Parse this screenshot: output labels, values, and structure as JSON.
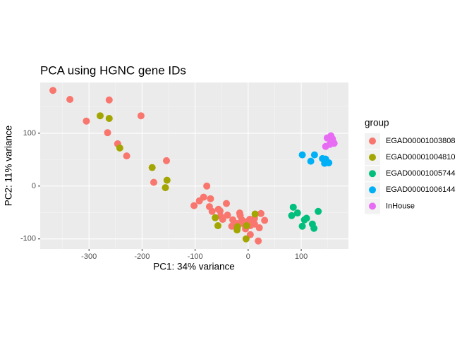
{
  "chart_data": {
    "type": "scatter",
    "title": "PCA using HGNC gene IDs",
    "x_label": "PC1: 34% variance",
    "y_label": "PC2: 11% variance",
    "legend_title": "group",
    "xlim": [
      -392,
      189
    ],
    "ylim": [
      -119,
      196
    ],
    "xticks": [
      -300,
      -200,
      -100,
      0,
      100
    ],
    "yticks": [
      -100,
      0,
      100
    ],
    "grid": true,
    "legend": "right",
    "series": [
      {
        "name": "EGAD00001003808",
        "color": "#F8766D",
        "x": [
          -368,
          -336,
          -262,
          -305,
          -202,
          -265,
          -246,
          -229,
          -154,
          -178,
          -78,
          -102,
          -92,
          -84,
          -71,
          -73,
          -68,
          -56,
          -53,
          -41,
          -39,
          -52,
          -48,
          -29,
          -31,
          -21,
          -15,
          -12,
          -8,
          -1,
          3,
          7,
          12,
          4,
          21,
          31,
          19,
          24,
          12,
          -16,
          4,
          -5
        ],
        "values": [
          181,
          164,
          163,
          123,
          133,
          101,
          80,
          57,
          48,
          7,
          0,
          -37,
          -28,
          -21,
          -24,
          -39,
          -48,
          -44,
          -47,
          -33,
          -55,
          -57,
          -63,
          -64,
          -76,
          -71,
          -56,
          -64,
          -72,
          -67,
          -63,
          -69,
          -72,
          -92,
          -79,
          -65,
          -104,
          -52,
          -61,
          -51,
          -75,
          -81
        ]
      },
      {
        "name": "EGAD00001004810",
        "color": "#A3A500",
        "x": [
          -279,
          -262,
          -242,
          -181,
          -153,
          -156,
          -62,
          -57,
          -20,
          -4,
          13,
          -21,
          -3
        ],
        "values": [
          133,
          128,
          72,
          35,
          11,
          -3,
          -60,
          -75,
          -77,
          -100,
          -53,
          -83,
          -75
        ]
      },
      {
        "name": "EGAD00001005744",
        "color": "#00BF7D",
        "x": [
          85,
          82,
          93,
          106,
          110,
          102,
          121,
          124,
          132
        ],
        "values": [
          -40,
          -56,
          -51,
          -64,
          -61,
          -76,
          -72,
          -80,
          -48
        ]
      },
      {
        "name": "EGAD00001006144",
        "color": "#00B0F6",
        "x": [
          102,
          125,
          118,
          140,
          146,
          144,
          152
        ],
        "values": [
          59,
          59,
          47,
          52,
          51,
          43,
          44
        ]
      },
      {
        "name": "InHouse",
        "color": "#E76BF3",
        "x": [
          149,
          156,
          162,
          157,
          146,
          151,
          159,
          154
        ],
        "values": [
          91,
          95,
          81,
          85,
          75,
          91,
          89,
          79
        ]
      }
    ]
  }
}
